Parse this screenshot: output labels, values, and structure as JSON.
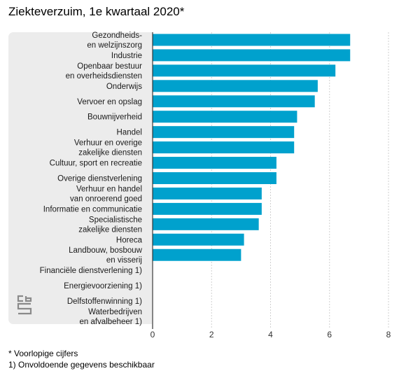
{
  "title": "Ziekteverzuim, 1e kwartaal 2020*",
  "footnotes": [
    "* Voorlopige cijfers",
    "1) Onvoldoende gegevens beschikbaar"
  ],
  "colors": {
    "bar": "#00a1cd",
    "panel": "#ececec",
    "grid": "#cfcfcf",
    "axis": "#333333",
    "logo": "#8a8a8a"
  },
  "logo_icon": "cbs-logo-icon",
  "chart_data": {
    "type": "bar",
    "orientation": "horizontal",
    "title": "Ziekteverzuim, 1e kwartaal 2020*",
    "xlabel": "",
    "ylabel": "",
    "xlim": [
      0,
      8
    ],
    "xticks": [
      0,
      2,
      4,
      6,
      8
    ],
    "grid": "vertical",
    "categories": [
      [
        "Gezondheids-",
        "en welzijnszorg"
      ],
      [
        "Industrie"
      ],
      [
        "Openbaar bestuur",
        "en overheidsdiensten"
      ],
      [
        "Onderwijs"
      ],
      [
        "Vervoer en opslag"
      ],
      [
        "Bouwnijverheid"
      ],
      [
        "Handel"
      ],
      [
        "Verhuur en overige",
        "zakelijke diensten"
      ],
      [
        "Cultuur, sport en recreatie"
      ],
      [
        "Overige dienstverlening"
      ],
      [
        "Verhuur en handel",
        "van onroerend goed"
      ],
      [
        "Informatie en communicatie"
      ],
      [
        "Specialistische",
        "zakelijke diensten"
      ],
      [
        "Horeca"
      ],
      [
        "Landbouw, bosbouw",
        "en visserij"
      ],
      [
        "Financiële dienstverlening 1)"
      ],
      [
        "Energievoorziening 1)"
      ],
      [
        "Delfstoffenwinning 1)"
      ],
      [
        "Waterbedrijven",
        "en afvalbeheer 1)"
      ]
    ],
    "values": [
      6.7,
      6.7,
      6.2,
      5.6,
      5.5,
      4.9,
      4.8,
      4.8,
      4.2,
      4.2,
      3.7,
      3.7,
      3.6,
      3.1,
      3.0,
      null,
      null,
      null,
      null
    ]
  }
}
